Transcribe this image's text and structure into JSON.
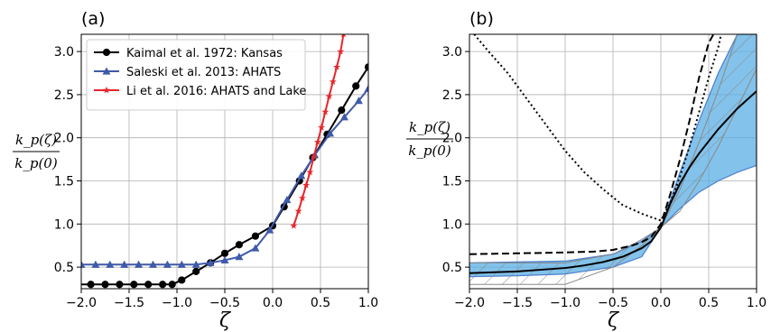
{
  "panels": [
    {
      "label": "(a)",
      "xlabel": "ζ",
      "ylabel_num": "k_p(ζ)",
      "ylabel_den": "k_p(0)",
      "xlim": [
        -2.0,
        1.0
      ],
      "ylim": [
        0.25,
        3.2
      ],
      "xticks": [
        "-2.0",
        "-1.5",
        "-1.0",
        "-0.5",
        "0.0",
        "0.5",
        "1.0"
      ],
      "yticks": [
        "0.5",
        "1.0",
        "1.5",
        "2.0",
        "2.5",
        "3.0"
      ],
      "legend": [
        {
          "label": "Kaimal et al. 1972: Kansas",
          "color": "#000000",
          "marker": "circle"
        },
        {
          "label": "Saleski et al. 2013: AHATS",
          "color": "#3f5aa8",
          "marker": "triangle"
        },
        {
          "label": "Li et al. 2016: AHATS and Lake",
          "color": "#e8262b",
          "marker": "star"
        }
      ]
    },
    {
      "label": "(b)",
      "xlabel": "ζ",
      "ylabel_num": "k_p(ζ)",
      "ylabel_den": "k_p(0)",
      "xlim": [
        -2.0,
        1.0
      ],
      "ylim": [
        0.25,
        3.2
      ],
      "xticks": [
        "-2.0",
        "-1.5",
        "-1.0",
        "-0.5",
        "0.0",
        "0.5",
        "1.0"
      ],
      "yticks": [
        "0.5",
        "1.0",
        "1.5",
        "2.0",
        "2.5",
        "3.0"
      ]
    }
  ],
  "chart_data": [
    {
      "type": "line",
      "title": "(a)",
      "xlabel": "ζ",
      "ylabel": "k_p(ζ) / k_p(0)",
      "xlim": [
        -2.0,
        1.0
      ],
      "ylim": [
        0.25,
        3.2
      ],
      "grid": true,
      "legend_position": "top-left",
      "series": [
        {
          "name": "Kaimal et al. 1972: Kansas",
          "color": "#000000",
          "marker": "circle",
          "x": [
            -2.1,
            -1.9,
            -1.75,
            -1.6,
            -1.45,
            -1.3,
            -1.15,
            -1.05,
            -0.95,
            -0.8,
            -0.65,
            -0.5,
            -0.35,
            -0.18,
            0.0,
            0.12,
            0.28,
            0.42,
            0.57,
            0.72,
            0.87,
            1.0
          ],
          "y": [
            0.3,
            0.3,
            0.3,
            0.3,
            0.3,
            0.3,
            0.3,
            0.3,
            0.35,
            0.45,
            0.55,
            0.66,
            0.76,
            0.86,
            0.98,
            1.2,
            1.5,
            1.77,
            2.04,
            2.32,
            2.6,
            2.82
          ]
        },
        {
          "name": "Saleski et al. 2013: AHATS",
          "color": "#3f5aa8",
          "marker": "triangle",
          "x": [
            -2.0,
            -1.85,
            -1.7,
            -1.55,
            -1.4,
            -1.25,
            -1.1,
            -0.95,
            -0.8,
            -0.65,
            -0.5,
            -0.35,
            -0.18,
            -0.03,
            0.15,
            0.3,
            0.44,
            0.6,
            0.75,
            0.9,
            1.0
          ],
          "y": [
            0.53,
            0.53,
            0.53,
            0.53,
            0.53,
            0.53,
            0.53,
            0.53,
            0.53,
            0.55,
            0.58,
            0.62,
            0.72,
            0.93,
            1.28,
            1.56,
            1.8,
            2.05,
            2.24,
            2.43,
            2.57
          ]
        },
        {
          "name": "Li et al. 2016: AHATS and Lake",
          "color": "#e8262b",
          "marker": "star",
          "x": [
            0.22,
            0.27,
            0.31,
            0.35,
            0.39,
            0.43,
            0.47,
            0.51,
            0.55,
            0.59,
            0.63,
            0.67,
            0.71,
            0.74
          ],
          "y": [
            0.98,
            1.15,
            1.3,
            1.45,
            1.6,
            1.78,
            1.95,
            2.12,
            2.3,
            2.48,
            2.65,
            2.82,
            3.0,
            3.2
          ]
        }
      ]
    },
    {
      "type": "line",
      "title": "(b)",
      "xlabel": "ζ",
      "ylabel": "k_p(ζ) / k_p(0)",
      "xlim": [
        -2.0,
        1.0
      ],
      "ylim": [
        0.25,
        3.2
      ],
      "grid": true,
      "series": [
        {
          "style": "solid",
          "color": "#000000",
          "x": [
            -2.0,
            -1.5,
            -1.0,
            -0.8,
            -0.6,
            -0.4,
            -0.2,
            -0.1,
            0.0,
            0.1,
            0.2,
            0.3,
            0.4,
            0.5,
            0.6,
            0.8,
            1.0
          ],
          "y": [
            0.43,
            0.45,
            0.49,
            0.52,
            0.56,
            0.62,
            0.72,
            0.8,
            0.96,
            1.24,
            1.47,
            1.66,
            1.82,
            1.96,
            2.1,
            2.34,
            2.54
          ]
        },
        {
          "style": "dashed",
          "color": "#000000",
          "x": [
            -2.0,
            -1.5,
            -1.0,
            -0.7,
            -0.5,
            -0.3,
            -0.2,
            -0.1,
            0.0,
            0.1,
            0.2,
            0.3,
            0.4,
            0.5,
            0.55
          ],
          "y": [
            0.65,
            0.66,
            0.67,
            0.68,
            0.7,
            0.75,
            0.79,
            0.85,
            1.0,
            1.35,
            1.75,
            2.2,
            2.7,
            3.1,
            3.2
          ]
        },
        {
          "style": "dotted",
          "color": "#000000",
          "x": [
            -1.95,
            -1.8,
            -1.6,
            -1.4,
            -1.2,
            -1.0,
            -0.8,
            -0.6,
            -0.4,
            -0.2,
            -0.1,
            0.0,
            0.1,
            0.2,
            0.3,
            0.4,
            0.5,
            0.6,
            0.63
          ],
          "y": [
            3.2,
            3.0,
            2.75,
            2.45,
            2.15,
            1.85,
            1.6,
            1.4,
            1.22,
            1.12,
            1.08,
            1.04,
            1.25,
            1.55,
            1.9,
            2.3,
            2.7,
            3.05,
            3.2
          ]
        },
        {
          "style": "band",
          "color": "#5aaee3",
          "x": [
            -2.0,
            -1.5,
            -1.0,
            -0.5,
            -0.2,
            0.0,
            0.2,
            0.4,
            0.6,
            0.8,
            1.0
          ],
          "lower": [
            0.39,
            0.4,
            0.42,
            0.5,
            0.62,
            0.96,
            1.18,
            1.37,
            1.5,
            1.6,
            1.68
          ],
          "upper": [
            0.55,
            0.56,
            0.57,
            0.65,
            0.8,
            0.96,
            1.6,
            2.2,
            2.75,
            3.2,
            3.2
          ]
        },
        {
          "style": "hatched-band",
          "color": "#888888",
          "x": [
            -2.0,
            -1.5,
            -1.0,
            -0.5,
            -0.2,
            0.0,
            0.2,
            0.4,
            0.6,
            0.8,
            1.0
          ],
          "lower": [
            0.3,
            0.3,
            0.3,
            0.5,
            0.75,
            0.96,
            1.15,
            1.5,
            1.9,
            2.35,
            2.8
          ],
          "upper": [
            0.55,
            0.55,
            0.55,
            0.65,
            0.82,
            0.96,
            1.4,
            1.95,
            2.55,
            3.2,
            3.2
          ]
        }
      ]
    }
  ]
}
